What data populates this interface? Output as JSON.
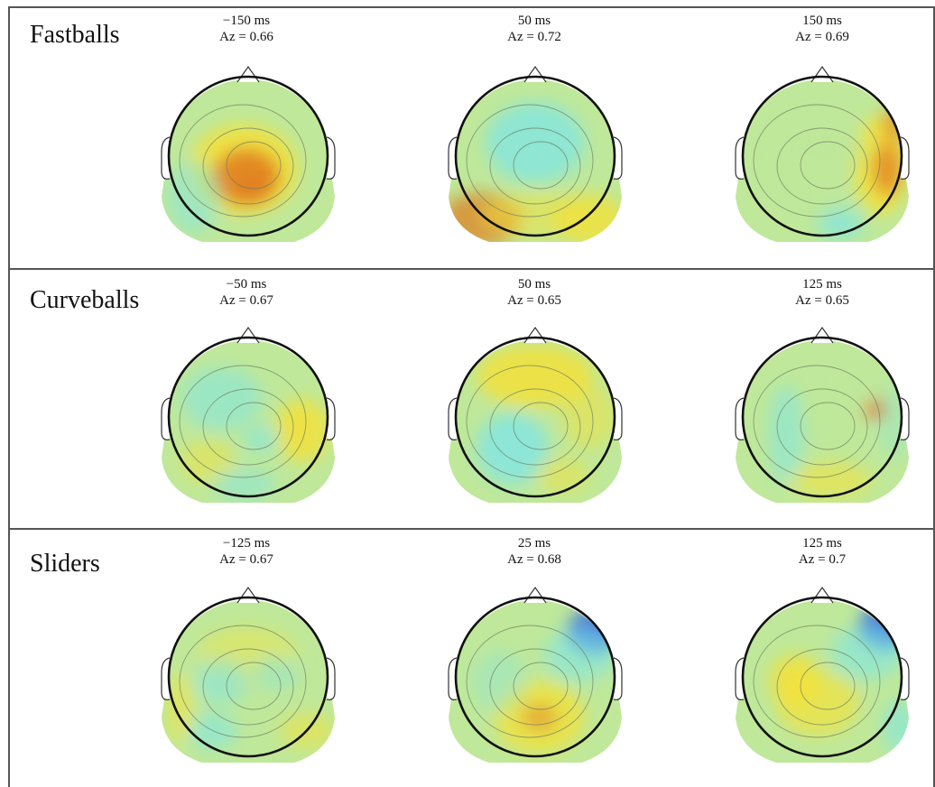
{
  "figure": {
    "rows": [
      {
        "label": "Fastballs",
        "maps": [
          {
            "time": "−150 ms",
            "az": "Az = 0.66",
            "scheme": "central-hot"
          },
          {
            "time": "50 ms",
            "az": "Az = 0.72",
            "scheme": "cool-top-warm-bottom"
          },
          {
            "time": "150 ms",
            "az": "Az = 0.69",
            "scheme": "right-hot"
          }
        ]
      },
      {
        "label": "Curveballs",
        "maps": [
          {
            "time": "−50 ms",
            "az": "Az = 0.67",
            "scheme": "mixed-right-warm"
          },
          {
            "time": "50 ms",
            "az": "Az = 0.65",
            "scheme": "warm-top-cool-left"
          },
          {
            "time": "125 ms",
            "az": "Az = 0.65",
            "scheme": "right-spot"
          }
        ]
      },
      {
        "label": "Sliders",
        "maps": [
          {
            "time": "−125 ms",
            "az": "Az = 0.67",
            "scheme": "cool-flat"
          },
          {
            "time": "25 ms",
            "az": "Az = 0.68",
            "scheme": "blue-top-right"
          },
          {
            "time": "125 ms",
            "az": "Az = 0.7",
            "scheme": "blue-top-right-warm-left"
          }
        ]
      }
    ],
    "colors": {
      "border": "#555555",
      "outline": "#111111",
      "contour": "#6b7a60",
      "cold": "#2f5fe0",
      "cool": "#7fe6e6",
      "neutral": "#bfe89a",
      "warm": "#f3e23a",
      "hot": "#e07a1f"
    }
  }
}
